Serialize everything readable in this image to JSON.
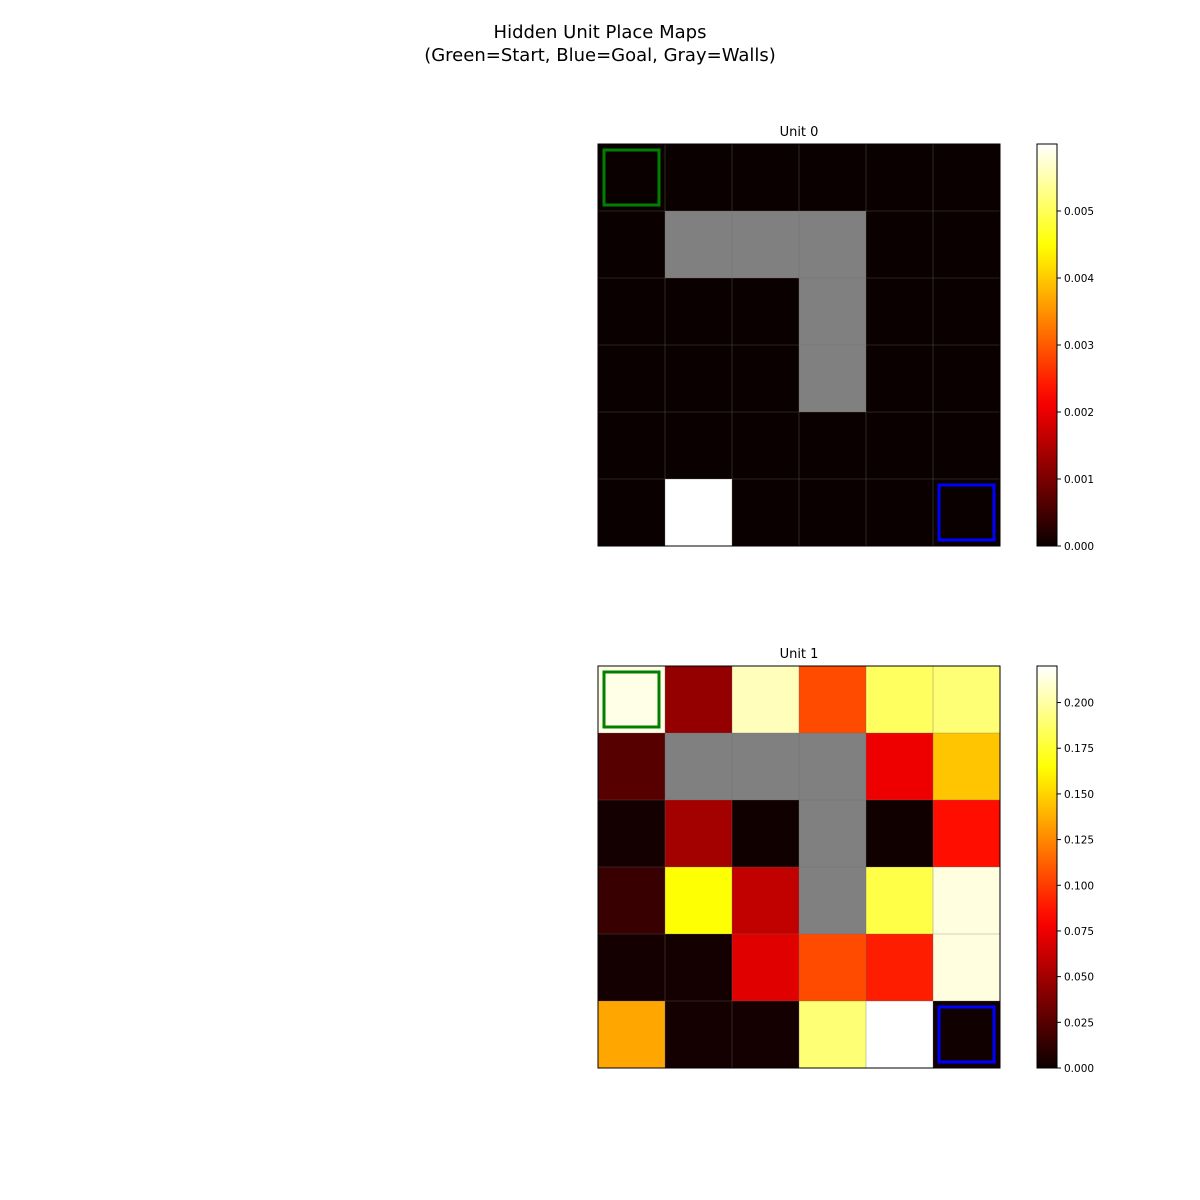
{
  "figure": {
    "title_line1": "Hidden Unit Place Maps",
    "title_line2": "(Green=Start, Blue=Goal, Gray=Walls)"
  },
  "colors": {
    "wall": "#808080",
    "start_outline": "#008000",
    "goal_outline": "#0000ff",
    "colormap": "hot"
  },
  "chart_data": [
    {
      "type": "heatmap",
      "title": "Unit 0",
      "rows": 6,
      "cols": 6,
      "start_cell": [
        0,
        0
      ],
      "goal_cell": [
        5,
        5
      ],
      "walls": [
        [
          1,
          1
        ],
        [
          1,
          2
        ],
        [
          1,
          3
        ],
        [
          2,
          3
        ],
        [
          3,
          3
        ]
      ],
      "values": [
        [
          0,
          0,
          0,
          0,
          0,
          0
        ],
        [
          0,
          null,
          null,
          null,
          0,
          0
        ],
        [
          0,
          0,
          0,
          null,
          0,
          0
        ],
        [
          0,
          0,
          0,
          null,
          0,
          0
        ],
        [
          0,
          0,
          0,
          0,
          0,
          0
        ],
        [
          0,
          0.006,
          0,
          0,
          0,
          0
        ]
      ],
      "vmin": 0,
      "vmax": 0.006,
      "colorbar_ticks": [
        "0.000",
        "0.001",
        "0.002",
        "0.003",
        "0.004",
        "0.005"
      ],
      "colorbar_tick_values": [
        0,
        0.001,
        0.002,
        0.003,
        0.004,
        0.005
      ]
    },
    {
      "type": "heatmap",
      "title": "Unit 1",
      "rows": 6,
      "cols": 6,
      "start_cell": [
        0,
        0
      ],
      "goal_cell": [
        5,
        5
      ],
      "walls": [
        [
          1,
          1
        ],
        [
          1,
          2
        ],
        [
          1,
          3
        ],
        [
          2,
          3
        ],
        [
          3,
          3
        ]
      ],
      "values": [
        [
          0.215,
          0.045,
          0.205,
          0.105,
          0.185,
          0.19
        ],
        [
          0.025,
          null,
          null,
          null,
          0.075,
          0.145
        ],
        [
          0.003,
          0.05,
          0.002,
          null,
          0.002,
          0.085
        ],
        [
          0.015,
          0.165,
          0.06,
          null,
          0.18,
          0.213
        ],
        [
          0.003,
          0.003,
          0.07,
          0.105,
          0.09,
          0.213
        ],
        [
          0.135,
          0.003,
          0.003,
          0.19,
          0.22,
          0.002
        ]
      ],
      "vmin": 0,
      "vmax": 0.22,
      "colorbar_ticks": [
        "0.000",
        "0.025",
        "0.050",
        "0.075",
        "0.100",
        "0.125",
        "0.150",
        "0.175",
        "0.200"
      ],
      "colorbar_tick_values": [
        0,
        0.025,
        0.05,
        0.075,
        0.1,
        0.125,
        0.15,
        0.175,
        0.2
      ]
    }
  ]
}
